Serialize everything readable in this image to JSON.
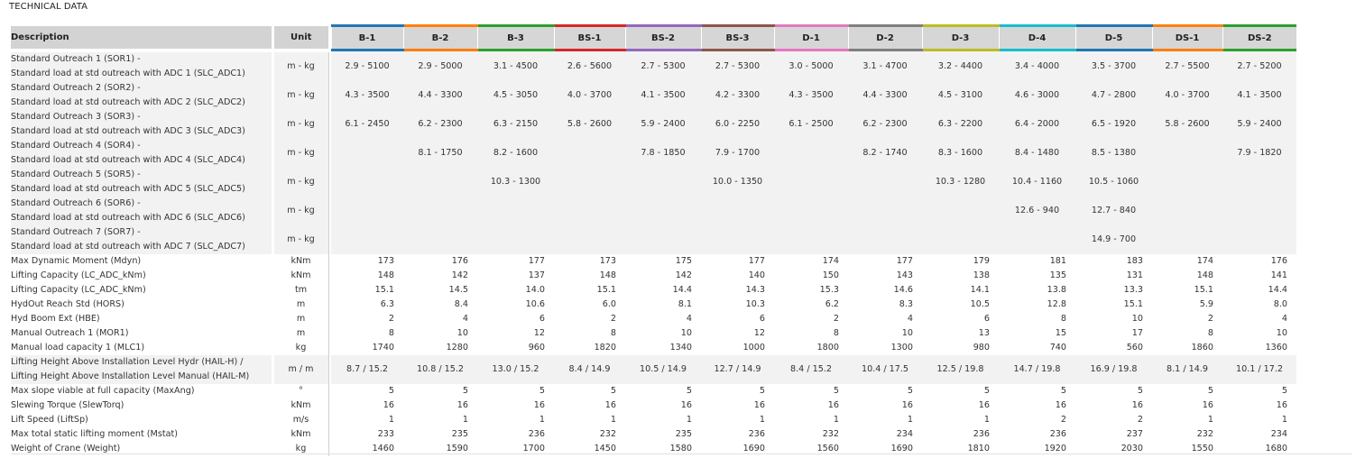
{
  "title": "TECHNICAL DATA",
  "header": {
    "description": "Description",
    "unit": "Unit",
    "models": [
      {
        "name": "B-1",
        "color": "#1f77b4"
      },
      {
        "name": "B-2",
        "color": "#ff7f0e"
      },
      {
        "name": "B-3",
        "color": "#2ca02c"
      },
      {
        "name": "BS-1",
        "color": "#d62728"
      },
      {
        "name": "BS-2",
        "color": "#9467bd"
      },
      {
        "name": "BS-3",
        "color": "#8c564b"
      },
      {
        "name": "D-1",
        "color": "#e377c2"
      },
      {
        "name": "D-2",
        "color": "#7f7f7f"
      },
      {
        "name": "D-3",
        "color": "#bcbd22"
      },
      {
        "name": "D-4",
        "color": "#17becf"
      },
      {
        "name": "D-5",
        "color": "#1f77b4"
      },
      {
        "name": "DS-1",
        "color": "#ff7f0e"
      },
      {
        "name": "DS-2",
        "color": "#2ca02c"
      }
    ]
  },
  "rows": [
    {
      "line1": "Standard Outreach 1 (SOR1) -",
      "line2": "Standard load at std outreach with ADC 1 (SLC_ADC1)",
      "unit": "m - kg",
      "values": [
        "2.9 - 5100",
        "2.9 - 5000",
        "3.1 - 4500",
        "2.6 - 5600",
        "2.7 - 5300",
        "2.7 - 5300",
        "3.0 - 5000",
        "3.1 - 4700",
        "3.2 - 4400",
        "3.4 - 4000",
        "3.5 - 3700",
        "2.7 - 5500",
        "2.7 - 5200"
      ]
    },
    {
      "line1": "Standard Outreach 2 (SOR2) -",
      "line2": "Standard load at std outreach with ADC 2 (SLC_ADC2)",
      "unit": "m - kg",
      "values": [
        "4.3 - 3500",
        "4.4 - 3300",
        "4.5 - 3050",
        "4.0 - 3700",
        "4.1 - 3500",
        "4.2 - 3300",
        "4.3 - 3500",
        "4.4 - 3300",
        "4.5 - 3100",
        "4.6 - 3000",
        "4.7 - 2800",
        "4.0 - 3700",
        "4.1 - 3500"
      ]
    },
    {
      "line1": "Standard Outreach 3 (SOR3) -",
      "line2": "Standard load at std outreach with ADC 3 (SLC_ADC3)",
      "unit": "m - kg",
      "values": [
        "6.1 - 2450",
        "6.2 - 2300",
        "6.3 - 2150",
        "5.8 - 2600",
        "5.9 - 2400",
        "6.0 - 2250",
        "6.1 - 2500",
        "6.2 - 2300",
        "6.3 - 2200",
        "6.4 - 2000",
        "6.5 - 1920",
        "5.8 - 2600",
        "5.9 - 2400"
      ]
    },
    {
      "line1": "Standard Outreach 4 (SOR4) -",
      "line2": "Standard load at std outreach with ADC 4 (SLC_ADC4)",
      "unit": "m - kg",
      "values": [
        "",
        "8.1 - 1750",
        "8.2 - 1600",
        "",
        "7.8 - 1850",
        "7.9 - 1700",
        "",
        "8.2 - 1740",
        "8.3 - 1600",
        "8.4 - 1480",
        "8.5 - 1380",
        "",
        "7.9 - 1820"
      ]
    },
    {
      "line1": "Standard Outreach 5 (SOR5) -",
      "line2": "Standard load at std outreach with ADC 5 (SLC_ADC5)",
      "unit": "m - kg",
      "values": [
        "",
        "",
        "10.3 - 1300",
        "",
        "",
        "10.0 - 1350",
        "",
        "",
        "10.3 - 1280",
        "10.4 - 1160",
        "10.5 - 1060",
        "",
        ""
      ]
    },
    {
      "line1": "Standard Outreach 6 (SOR6) -",
      "line2": "Standard load at std outreach with ADC 6 (SLC_ADC6)",
      "unit": "m - kg",
      "values": [
        "",
        "",
        "",
        "",
        "",
        "",
        "",
        "",
        "",
        "12.6 - 940",
        "12.7 - 840",
        "",
        ""
      ]
    },
    {
      "line1": "Standard Outreach 7 (SOR7) -",
      "line2": "Standard load at std outreach with ADC 7 (SLC_ADC7)",
      "unit": "m - kg",
      "values": [
        "",
        "",
        "",
        "",
        "",
        "",
        "",
        "",
        "",
        "",
        "14.9 - 700",
        "",
        ""
      ]
    },
    {
      "line1": "Max Dynamic Moment (Mdyn)",
      "unit": "kNm",
      "values": [
        "173",
        "176",
        "177",
        "173",
        "175",
        "177",
        "174",
        "177",
        "179",
        "181",
        "183",
        "174",
        "176"
      ]
    },
    {
      "line1": "Lifting Capacity (LC_ADC_kNm)",
      "unit": "kNm",
      "values": [
        "148",
        "142",
        "137",
        "148",
        "142",
        "140",
        "150",
        "143",
        "138",
        "135",
        "131",
        "148",
        "141"
      ]
    },
    {
      "line1": "Lifting Capacity (LC_ADC_kNm)",
      "unit": "tm",
      "values": [
        "15.1",
        "14.5",
        "14.0",
        "15.1",
        "14.4",
        "14.3",
        "15.3",
        "14.6",
        "14.1",
        "13.8",
        "13.3",
        "15.1",
        "14.4"
      ]
    },
    {
      "line1": "HydOut Reach Std (HORS)",
      "unit": "m",
      "values": [
        "6.3",
        "8.4",
        "10.6",
        "6.0",
        "8.1",
        "10.3",
        "6.2",
        "8.3",
        "10.5",
        "12.8",
        "15.1",
        "5.9",
        "8.0"
      ]
    },
    {
      "line1": "Hyd Boom Ext (HBE)",
      "unit": "m",
      "values": [
        "2",
        "4",
        "6",
        "2",
        "4",
        "6",
        "2",
        "4",
        "6",
        "8",
        "10",
        "2",
        "4"
      ]
    },
    {
      "line1": "Manual Outreach 1 (MOR1)",
      "unit": "m",
      "values": [
        "8",
        "10",
        "12",
        "8",
        "10",
        "12",
        "8",
        "10",
        "13",
        "15",
        "17",
        "8",
        "10"
      ]
    },
    {
      "line1": "Manual load capacity 1 (MLC1)",
      "unit": "kg",
      "values": [
        "1740",
        "1280",
        "960",
        "1820",
        "1340",
        "1000",
        "1800",
        "1300",
        "980",
        "740",
        "560",
        "1860",
        "1360"
      ]
    },
    {
      "line1": "Lifting Height Above Installation Level Hydr (HAIL-H) /",
      "line2": "Lifting Height Above Installation Level Manual (HAIL-M)",
      "unit": "m / m",
      "values": [
        "8.7 / 15.2",
        "10.8 / 15.2",
        "13.0 / 15.2",
        "8.4 / 14.9",
        "10.5 / 14.9",
        "12.7 / 14.9",
        "8.4 / 15.2",
        "10.4 / 17.5",
        "12.5 / 19.8",
        "14.7 / 19.8",
        "16.9 / 19.8",
        "8.1 / 14.9",
        "10.1 / 17.2"
      ]
    },
    {
      "line1": "Max slope viable at full capacity (MaxAng)",
      "unit": "°",
      "values": [
        "5",
        "5",
        "5",
        "5",
        "5",
        "5",
        "5",
        "5",
        "5",
        "5",
        "5",
        "5",
        "5"
      ]
    },
    {
      "line1": "Slewing Torque (SlewTorq)",
      "unit": "kNm",
      "values": [
        "16",
        "16",
        "16",
        "16",
        "16",
        "16",
        "16",
        "16",
        "16",
        "16",
        "16",
        "16",
        "16"
      ]
    },
    {
      "line1": "Lift Speed (LiftSp)",
      "unit": "m/s",
      "values": [
        "1",
        "1",
        "1",
        "1",
        "1",
        "1",
        "1",
        "1",
        "1",
        "2",
        "2",
        "1",
        "1"
      ]
    },
    {
      "line1": "Max total static lifting moment (Mstat)",
      "unit": "kNm",
      "values": [
        "233",
        "235",
        "236",
        "232",
        "235",
        "236",
        "232",
        "234",
        "236",
        "236",
        "237",
        "232",
        "234"
      ]
    },
    {
      "line1": "Weight of Crane (Weight)",
      "unit": "kg",
      "values": [
        "1460",
        "1590",
        "1700",
        "1450",
        "1580",
        "1690",
        "1560",
        "1690",
        "1810",
        "1920",
        "2030",
        "1550",
        "1680"
      ]
    }
  ]
}
